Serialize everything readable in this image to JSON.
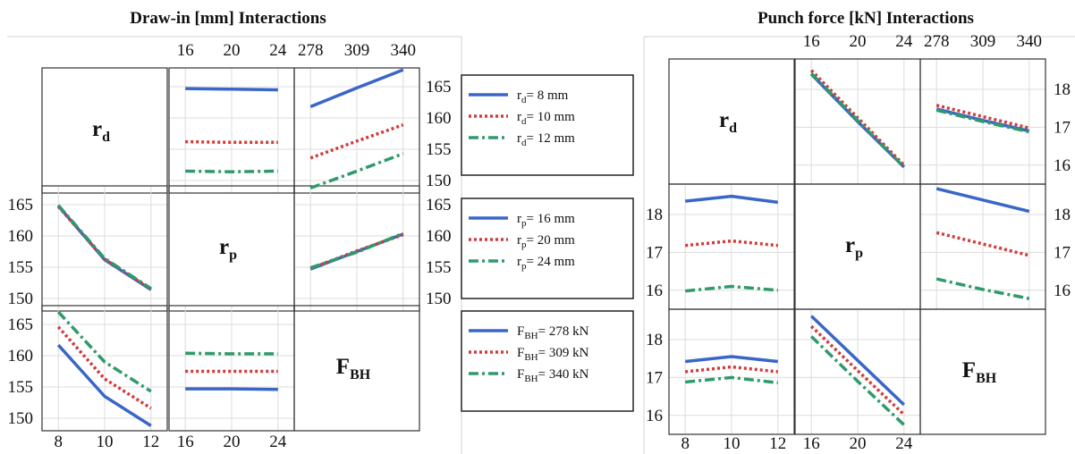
{
  "chart_data": [
    {
      "type": "line",
      "title": "Draw-in [mm] Interactions",
      "factors": [
        {
          "key": "rd",
          "label": "r",
          "sub": "d",
          "levels": [
            8,
            10,
            12
          ]
        },
        {
          "key": "rp",
          "label": "r",
          "sub": "p",
          "levels": [
            16,
            20,
            24
          ]
        },
        {
          "key": "fbh",
          "label": "F",
          "sub": "BH",
          "levels": [
            278,
            309,
            340
          ]
        }
      ],
      "ylim": [
        148,
        168
      ],
      "yticks": [
        150,
        155,
        160,
        165
      ],
      "grid": true,
      "panels": [
        {
          "row": 0,
          "col": 1,
          "series": [
            {
              "level": 0,
              "values": [
                164.7,
                164.6,
                164.5
              ]
            },
            {
              "level": 1,
              "values": [
                156.2,
                156.1,
                156.1
              ]
            },
            {
              "level": 2,
              "values": [
                151.5,
                151.4,
                151.5
              ]
            }
          ]
        },
        {
          "row": 0,
          "col": 2,
          "series": [
            {
              "level": 0,
              "values": [
                161.8,
                164.8,
                167.7
              ]
            },
            {
              "level": 1,
              "values": [
                153.6,
                156.3,
                158.9
              ]
            },
            {
              "level": 2,
              "values": [
                148.8,
                151.5,
                154.3
              ]
            }
          ]
        },
        {
          "row": 1,
          "col": 0,
          "series": [
            {
              "level": 0,
              "values": [
                164.8,
                156.2,
                151.4
              ]
            },
            {
              "level": 1,
              "values": [
                164.7,
                156.3,
                151.5
              ]
            },
            {
              "level": 2,
              "values": [
                164.9,
                156.4,
                151.6
              ]
            }
          ]
        },
        {
          "row": 1,
          "col": 2,
          "series": [
            {
              "level": 0,
              "values": [
                154.7,
                157.5,
                160.3
              ]
            },
            {
              "level": 1,
              "values": [
                154.8,
                157.6,
                160.2
              ]
            },
            {
              "level": 2,
              "values": [
                154.9,
                157.4,
                160.4
              ]
            }
          ]
        },
        {
          "row": 2,
          "col": 0,
          "series": [
            {
              "level": 0,
              "values": [
                161.7,
                153.5,
                148.8
              ]
            },
            {
              "level": 1,
              "values": [
                164.6,
                156.3,
                151.6
              ]
            },
            {
              "level": 2,
              "values": [
                167.0,
                159.0,
                154.3
              ]
            }
          ]
        },
        {
          "row": 2,
          "col": 1,
          "series": [
            {
              "level": 0,
              "values": [
                154.7,
                154.7,
                154.6
              ]
            },
            {
              "level": 1,
              "values": [
                157.5,
                157.5,
                157.5
              ]
            },
            {
              "level": 2,
              "values": [
                160.4,
                160.3,
                160.3
              ]
            }
          ]
        }
      ]
    },
    {
      "type": "line",
      "title": "Punch force [kN] Interactions",
      "factors": [
        {
          "key": "rd",
          "label": "r",
          "sub": "d",
          "levels": [
            8,
            10,
            12
          ]
        },
        {
          "key": "rp",
          "label": "r",
          "sub": "p",
          "levels": [
            16,
            20,
            24
          ]
        },
        {
          "key": "fbh",
          "label": "F",
          "sub": "BH",
          "levels": [
            278,
            309,
            340
          ]
        }
      ],
      "ylim": [
        15.5,
        18.8
      ],
      "yticks": [
        16,
        17,
        18
      ],
      "grid": true,
      "panels": [
        {
          "row": 0,
          "col": 1,
          "series": [
            {
              "level": 0,
              "values": [
                18.4,
                17.15,
                15.95
              ]
            },
            {
              "level": 1,
              "values": [
                18.5,
                17.25,
                16.0
              ]
            },
            {
              "level": 2,
              "values": [
                18.42,
                17.18,
                15.95
              ]
            }
          ]
        },
        {
          "row": 0,
          "col": 2,
          "series": [
            {
              "level": 0,
              "values": [
                17.48,
                17.18,
                16.9
              ]
            },
            {
              "level": 1,
              "values": [
                17.58,
                17.28,
                16.98
              ]
            },
            {
              "level": 2,
              "values": [
                17.45,
                17.15,
                16.88
              ]
            }
          ]
        },
        {
          "row": 1,
          "col": 0,
          "series": [
            {
              "level": 0,
              "values": [
                18.35,
                18.48,
                18.32
              ]
            },
            {
              "level": 1,
              "values": [
                17.18,
                17.3,
                17.18
              ]
            },
            {
              "level": 2,
              "values": [
                15.98,
                16.1,
                16.0
              ]
            }
          ]
        },
        {
          "row": 1,
          "col": 2,
          "series": [
            {
              "level": 0,
              "values": [
                18.68,
                18.38,
                18.08
              ]
            },
            {
              "level": 1,
              "values": [
                17.52,
                17.22,
                16.92
              ]
            },
            {
              "level": 2,
              "values": [
                16.3,
                16.02,
                15.78
              ]
            }
          ]
        },
        {
          "row": 2,
          "col": 0,
          "series": [
            {
              "level": 0,
              "values": [
                17.42,
                17.55,
                17.42
              ]
            },
            {
              "level": 1,
              "values": [
                17.15,
                17.28,
                17.15
              ]
            },
            {
              "level": 2,
              "values": [
                16.88,
                17.0,
                16.86
              ]
            }
          ]
        },
        {
          "row": 2,
          "col": 1,
          "series": [
            {
              "level": 0,
              "values": [
                18.62,
                17.45,
                16.28
              ]
            },
            {
              "level": 1,
              "values": [
                18.35,
                17.18,
                16.02
              ]
            },
            {
              "level": 2,
              "values": [
                18.08,
                16.9,
                15.75
              ]
            }
          ]
        }
      ]
    }
  ],
  "legends": [
    {
      "factor": "r",
      "sub": "d",
      "entries": [
        "= 8 mm",
        "= 10 mm",
        "= 12 mm"
      ]
    },
    {
      "factor": "r",
      "sub": "p",
      "entries": [
        "= 16 mm",
        "= 20 mm",
        "= 24 mm"
      ]
    },
    {
      "factor": "F",
      "sub": "BH",
      "entries": [
        "= 278 kN",
        "= 309 kN",
        "= 340 kN"
      ]
    }
  ],
  "colors": {
    "level0": "#3a66c8",
    "level1": "#d23a3a",
    "level2": "#2f9a6a",
    "grid": "#dcdcdc",
    "frame": "#333333"
  }
}
